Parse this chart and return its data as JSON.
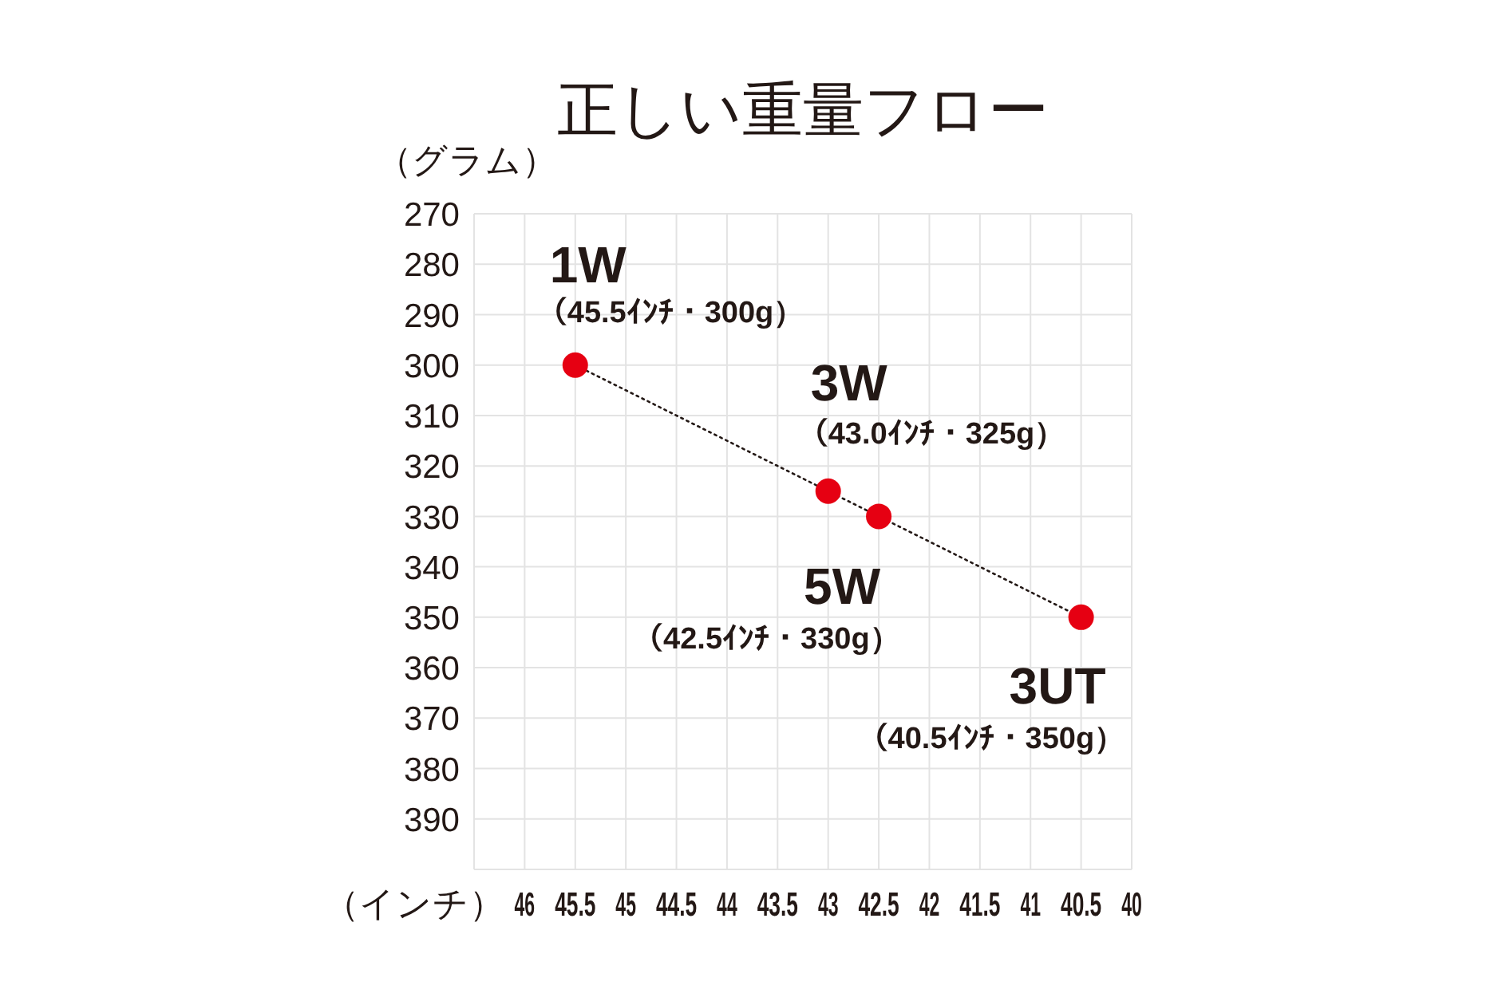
{
  "chart_data": {
    "type": "scatter",
    "title": "正しい重量フロー",
    "xlabel": "（インチ）",
    "ylabel": "（グラム）",
    "x": [
      45.5,
      43,
      42.5,
      40.5
    ],
    "series": [
      {
        "type": "line",
        "color": "#231815",
        "values": [
          300,
          325,
          330,
          350
        ],
        "line_style": "dotted",
        "marker": "none"
      },
      {
        "color": "#e60012",
        "values": [
          300,
          325,
          330,
          350
        ],
        "marker": "circle"
      }
    ],
    "xlim": [
      46.5,
      40
    ],
    "xticks": [
      46,
      45.5,
      45,
      44.5,
      44,
      43.5,
      43,
      42.5,
      42,
      41.5,
      41,
      40.5,
      40
    ],
    "ylim": [
      400,
      270
    ],
    "yticks": [
      270,
      280,
      290,
      300,
      310,
      320,
      330,
      340,
      350,
      360,
      370,
      380,
      390
    ],
    "grid": true,
    "annotations": [
      {
        "text": "1W",
        "x": 45.5,
        "y": 300
      },
      "（45.5ｲﾝﾁ・300g）",
      {
        "text": "3W",
        "x": 43,
        "y": 325
      },
      "（43.0ｲﾝﾁ・325g）",
      {
        "text": "5W",
        "x": 42.5,
        "y": 330
      },
      "（42.5ｲﾝﾁ・330g）",
      {
        "text": "3UT",
        "x": 40.5,
        "y": 350
      },
      "（40.5ｲﾝﾁ・350g）"
    ]
  }
}
